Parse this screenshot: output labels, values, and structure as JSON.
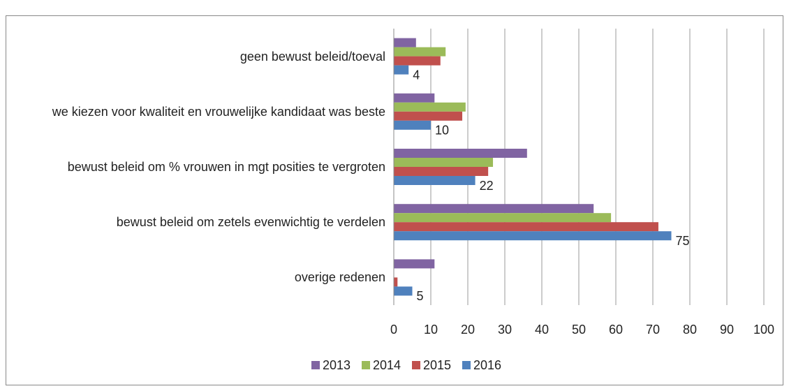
{
  "chart_data": {
    "type": "hbar",
    "categories": [
      "geen bewust beleid/toeval",
      "we kiezen voor kwaliteit en vrouwelijke kandidaat was beste",
      "bewust beleid om % vrouwen in mgt posities te vergroten",
      "bewust beleid om zetels evenwichtig te verdelen",
      "overige redenen"
    ],
    "series": [
      {
        "name": "2013",
        "color": "#8064a2",
        "values": [
          6,
          11,
          36,
          54,
          11
        ]
      },
      {
        "name": "2014",
        "color": "#9bbb59",
        "values": [
          14,
          19.4,
          26.8,
          58.7,
          0
        ]
      },
      {
        "name": "2015",
        "color": "#c0504d",
        "values": [
          12.6,
          18.5,
          25.5,
          71.5,
          1
        ]
      },
      {
        "name": "2016",
        "color": "#4f81bd",
        "values": [
          4,
          10,
          22,
          75,
          5
        ],
        "show_labels": true
      }
    ],
    "xlim": [
      0,
      100
    ],
    "xticks": [
      0,
      10,
      20,
      30,
      40,
      50,
      60,
      70,
      80,
      90,
      100
    ],
    "grid": true,
    "legend": "bottom"
  }
}
